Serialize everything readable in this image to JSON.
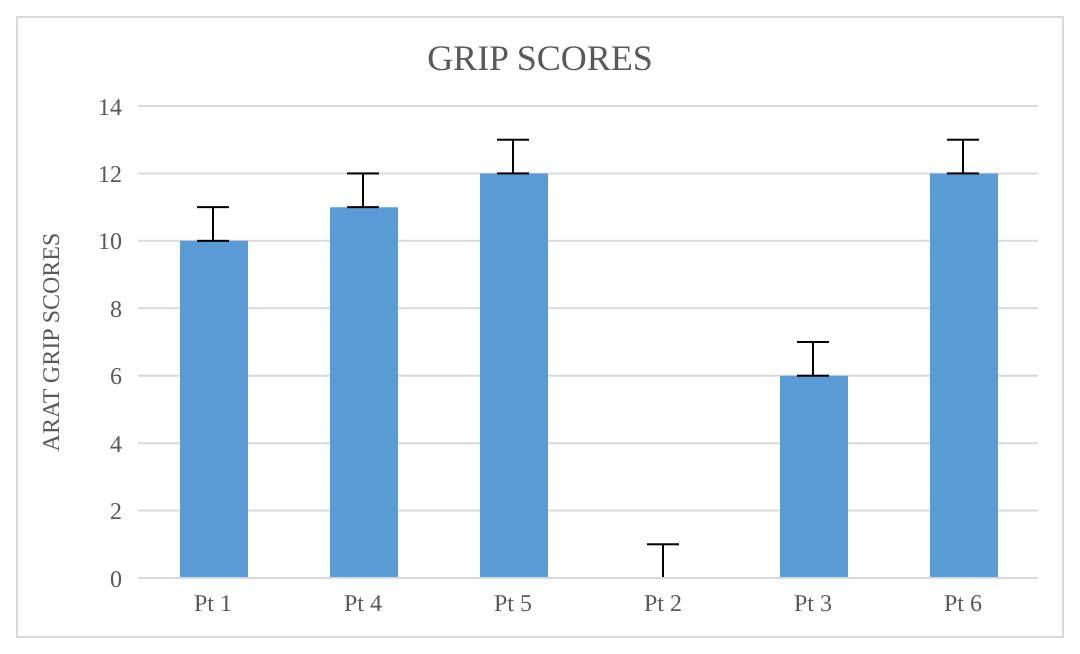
{
  "chart_data": {
    "type": "bar",
    "title": "GRIP SCORES",
    "ylabel": "ARAT GRIP SCORES",
    "categories": [
      "Pt 1",
      "Pt 4",
      "Pt 5",
      "Pt 2",
      "Pt 3",
      "Pt 6"
    ],
    "values": [
      10,
      11,
      12,
      0,
      6,
      12
    ],
    "errors": [
      [
        10,
        11
      ],
      [
        11,
        12
      ],
      [
        12,
        13
      ],
      [
        0,
        1
      ],
      [
        6,
        7
      ],
      [
        12,
        13
      ]
    ],
    "color": "#5b9bd5",
    "ylim": [
      0,
      14
    ],
    "yticks": [
      0,
      2,
      4,
      6,
      8,
      10,
      12,
      14
    ],
    "grid": "y"
  }
}
